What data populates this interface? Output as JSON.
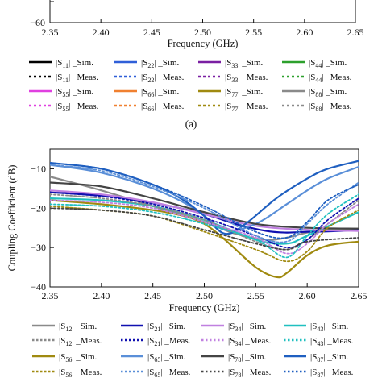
{
  "caption_a": "(a)",
  "chart_data": [
    {
      "type": "line",
      "panel": "a",
      "xlabel": "Frequency (GHz)",
      "ylabel": "",
      "xlim": [
        2.35,
        2.65
      ],
      "ylim": [
        -60,
        0
      ],
      "xticks": [
        "2.35",
        "2.40",
        "2.45",
        "2.50",
        "2.55",
        "2.60",
        "2.65"
      ],
      "yticks": [
        "−60"
      ],
      "legend_placement": "below",
      "legend": [
        {
          "label": "|S11| _Sim.",
          "prefix": "|S",
          "sub": "11",
          "suffix": "| _Sim.",
          "color": "#000000",
          "dash": "solid"
        },
        {
          "label": "|S22| _Sim.",
          "prefix": "|S",
          "sub": "22",
          "suffix": "| _Sim.",
          "color": "#2f5fd8",
          "dash": "solid"
        },
        {
          "label": "|S33| _Sim.",
          "prefix": "|S",
          "sub": "33",
          "suffix": "| _Sim.",
          "color": "#7a1fa2",
          "dash": "solid"
        },
        {
          "label": "|S44| _Sim.",
          "prefix": "|S",
          "sub": "44",
          "suffix": "| _Sim.",
          "color": "#2ca02c",
          "dash": "solid"
        },
        {
          "label": "|S11| _Meas.",
          "prefix": "|S",
          "sub": "11",
          "suffix": "| _Meas.",
          "color": "#000000",
          "dash": "dot"
        },
        {
          "label": "|S22| _Meas.",
          "prefix": "|S",
          "sub": "22",
          "suffix": "| _Meas.",
          "color": "#2f5fd8",
          "dash": "dot"
        },
        {
          "label": "|S33| _Meas.",
          "prefix": "|S",
          "sub": "33",
          "suffix": "| _Meas.",
          "color": "#7a1fa2",
          "dash": "dot"
        },
        {
          "label": "|S44| _Meas.",
          "prefix": "|S",
          "sub": "44",
          "suffix": "| _Meas.",
          "color": "#2ca02c",
          "dash": "dot"
        },
        {
          "label": "|S55| _Sim.",
          "prefix": "|S",
          "sub": "55",
          "suffix": "| _Sim.",
          "color": "#e040e0",
          "dash": "solid"
        },
        {
          "label": "|S66| _Sim.",
          "prefix": "|S",
          "sub": "66",
          "suffix": "| _Sim.",
          "color": "#f08030",
          "dash": "solid"
        },
        {
          "label": "|S77| _Sim.",
          "prefix": "|S",
          "sub": "77",
          "suffix": "| _Sim.",
          "color": "#a08a10",
          "dash": "solid"
        },
        {
          "label": "|S88| _Sim.",
          "prefix": "|S",
          "sub": "88",
          "suffix": "| _Sim.",
          "color": "#8a8a8a",
          "dash": "solid"
        },
        {
          "label": "|S55| _Meas.",
          "prefix": "|S",
          "sub": "55",
          "suffix": "| _Meas.",
          "color": "#e040e0",
          "dash": "dot"
        },
        {
          "label": "|S66| _Meas.",
          "prefix": "|S",
          "sub": "66",
          "suffix": "| _Meas.",
          "color": "#f08030",
          "dash": "dot"
        },
        {
          "label": "|S77| _Meas.",
          "prefix": "|S",
          "sub": "77",
          "suffix": "| _Meas.",
          "color": "#a08a10",
          "dash": "dot"
        },
        {
          "label": "|S88| _Meas.",
          "prefix": "|S",
          "sub": "88",
          "suffix": "| _Meas.",
          "color": "#8a8a8a",
          "dash": "dot"
        }
      ]
    },
    {
      "type": "line",
      "panel": "b",
      "xlabel": "Frequency (GHz)",
      "ylabel": "Coupling Coefficient (dB)",
      "xlim": [
        2.35,
        2.65
      ],
      "ylim": [
        -40,
        -5
      ],
      "xticks": [
        "2.35",
        "2.40",
        "2.45",
        "2.50",
        "2.55",
        "2.60",
        "2.65"
      ],
      "yticks": [
        "−10",
        "−20",
        "−30",
        "−40"
      ],
      "grid": false,
      "legend_placement": "below",
      "series": [
        {
          "name": "|S12| _Sim.",
          "prefix": "|S",
          "sub": "12",
          "suffix": "| _Sim.",
          "color": "#8a8a8a",
          "dash": "solid",
          "x": [
            2.35,
            2.4,
            2.45,
            2.5,
            2.53,
            2.56,
            2.58,
            2.6,
            2.62,
            2.65
          ],
          "y": [
            -12.0,
            -15.5,
            -19.5,
            -23.5,
            -26.5,
            -28.0,
            -27.5,
            -26.2,
            -25.5,
            -25.2
          ]
        },
        {
          "name": "|S21| _Sim.",
          "prefix": "|S",
          "sub": "21",
          "suffix": "| _Sim.",
          "color": "#1010b0",
          "dash": "solid",
          "x": [
            2.35,
            2.4,
            2.45,
            2.5,
            2.53,
            2.56,
            2.58,
            2.6,
            2.62,
            2.65
          ],
          "y": [
            -16.0,
            -16.8,
            -18.6,
            -21.5,
            -24.0,
            -25.8,
            -26.2,
            -26.0,
            -25.9,
            -25.6
          ]
        },
        {
          "name": "|S34| _Sim.",
          "prefix": "|S",
          "sub": "34",
          "suffix": "| _Sim.",
          "color": "#c080e0",
          "dash": "solid",
          "x": [
            2.35,
            2.4,
            2.45,
            2.5,
            2.55,
            2.6,
            2.65
          ],
          "y": [
            -15.5,
            -16.5,
            -18.5,
            -21.5,
            -24.5,
            -25.5,
            -25.8
          ]
        },
        {
          "name": "|S43| _Sim.",
          "prefix": "|S",
          "sub": "43",
          "suffix": "| _Sim.",
          "color": "#20c0c0",
          "dash": "solid",
          "x": [
            2.35,
            2.4,
            2.45,
            2.5,
            2.55,
            2.58,
            2.6,
            2.65
          ],
          "y": [
            -17.5,
            -18.0,
            -19.5,
            -23.0,
            -28.0,
            -29.0,
            -27.0,
            -21.0
          ]
        },
        {
          "name": "|S56| _Sim.",
          "prefix": "|S",
          "sub": "56",
          "suffix": "| _Sim.",
          "color": "#a08a10",
          "dash": "solid",
          "x": [
            2.35,
            2.4,
            2.45,
            2.48,
            2.5,
            2.52,
            2.55,
            2.57,
            2.58,
            2.6,
            2.62,
            2.65
          ],
          "y": [
            -18.0,
            -19.0,
            -20.5,
            -22.0,
            -24.0,
            -28.0,
            -35.0,
            -37.5,
            -36.5,
            -32.0,
            -29.5,
            -28.5
          ]
        },
        {
          "name": "|S65| _Sim.",
          "prefix": "|S",
          "sub": "65",
          "suffix": "| _Sim.",
          "color": "#5a8fd8",
          "dash": "solid",
          "x": [
            2.35,
            2.4,
            2.45,
            2.49,
            2.52,
            2.55,
            2.58,
            2.6,
            2.62,
            2.65
          ],
          "y": [
            -9.0,
            -11.0,
            -15.0,
            -20.0,
            -25.5,
            -24.0,
            -19.0,
            -15.5,
            -12.5,
            -9.5
          ]
        },
        {
          "name": "|S78| _Sim.",
          "prefix": "|S",
          "sub": "78",
          "suffix": "| _Sim.",
          "color": "#444444",
          "dash": "solid",
          "x": [
            2.35,
            2.4,
            2.45,
            2.5,
            2.55,
            2.6,
            2.65
          ],
          "y": [
            -13.5,
            -14.5,
            -17.5,
            -21.0,
            -24.0,
            -25.0,
            -25.2
          ]
        },
        {
          "name": "|S87| _Sim.",
          "prefix": "|S",
          "sub": "87",
          "suffix": "| _Sim.",
          "color": "#1f5fc0",
          "dash": "solid",
          "x": [
            2.35,
            2.4,
            2.45,
            2.48,
            2.5,
            2.52,
            2.54,
            2.57,
            2.6,
            2.62,
            2.65
          ],
          "y": [
            -8.5,
            -10.0,
            -14.0,
            -18.0,
            -22.0,
            -26.5,
            -24.0,
            -17.5,
            -12.5,
            -10.0,
            -8.0
          ]
        },
        {
          "name": "|S12| _Meas.",
          "prefix": "|S",
          "sub": "12",
          "suffix": "| _Meas.",
          "color": "#8a8a8a",
          "dash": "dot",
          "x": [
            2.35,
            2.4,
            2.45,
            2.5,
            2.55,
            2.58,
            2.6,
            2.62,
            2.65
          ],
          "y": [
            -16.5,
            -17.5,
            -19.5,
            -23.0,
            -28.5,
            -30.5,
            -28.0,
            -24.0,
            -18.0
          ]
        },
        {
          "name": "|S21| _Meas.",
          "prefix": "|S",
          "sub": "21",
          "suffix": "| _Meas.",
          "color": "#1010b0",
          "dash": "dot",
          "x": [
            2.35,
            2.4,
            2.45,
            2.5,
            2.55,
            2.58,
            2.6,
            2.62,
            2.65
          ],
          "y": [
            -16.0,
            -17.0,
            -19.0,
            -22.5,
            -27.0,
            -30.0,
            -28.0,
            -23.0,
            -17.5
          ]
        },
        {
          "name": "|S34| _Meas.",
          "prefix": "|S",
          "sub": "34",
          "suffix": "| _Meas.",
          "color": "#c080e0",
          "dash": "dot",
          "x": [
            2.35,
            2.4,
            2.45,
            2.5,
            2.55,
            2.58,
            2.6,
            2.62,
            2.65
          ],
          "y": [
            -18.0,
            -18.5,
            -20.0,
            -23.5,
            -27.5,
            -31.5,
            -29.0,
            -24.0,
            -19.0
          ]
        },
        {
          "name": "|S43| _Meas.",
          "prefix": "|S",
          "sub": "43",
          "suffix": "| _Meas.",
          "color": "#20c0c0",
          "dash": "dot",
          "x": [
            2.35,
            2.4,
            2.45,
            2.5,
            2.55,
            2.58,
            2.6,
            2.62,
            2.65
          ],
          "y": [
            -19.0,
            -19.5,
            -21.0,
            -24.0,
            -28.0,
            -32.5,
            -27.0,
            -21.5,
            -16.5
          ]
        },
        {
          "name": "|S56| _Meas.",
          "prefix": "|S",
          "sub": "56",
          "suffix": "| _Meas.",
          "color": "#a08a10",
          "dash": "dot",
          "x": [
            2.35,
            2.4,
            2.45,
            2.5,
            2.55,
            2.58,
            2.6,
            2.62,
            2.65
          ],
          "y": [
            -19.5,
            -20.5,
            -22.0,
            -26.0,
            -30.5,
            -33.5,
            -31.0,
            -25.0,
            -20.5
          ]
        },
        {
          "name": "|S65| _Meas.",
          "prefix": "|S",
          "sub": "65",
          "suffix": "| _Meas.",
          "color": "#5a8fd8",
          "dash": "dot",
          "x": [
            2.35,
            2.4,
            2.45,
            2.5,
            2.55,
            2.58,
            2.6,
            2.62,
            2.65
          ],
          "y": [
            -9.0,
            -10.5,
            -14.5,
            -20.0,
            -27.0,
            -28.5,
            -24.0,
            -19.0,
            -13.5
          ]
        },
        {
          "name": "|S78| _Meas.",
          "prefix": "|S",
          "sub": "78",
          "suffix": "| _Meas.",
          "color": "#444444",
          "dash": "dot",
          "x": [
            2.35,
            2.4,
            2.45,
            2.5,
            2.55,
            2.58,
            2.6,
            2.65
          ],
          "y": [
            -20.0,
            -20.5,
            -22.0,
            -25.5,
            -29.0,
            -30.5,
            -28.5,
            -27.5
          ]
        },
        {
          "name": "|S87| _Meas.",
          "prefix": "|S",
          "sub": "87",
          "suffix": "| _Meas.",
          "color": "#1f5fc0",
          "dash": "dot",
          "x": [
            2.35,
            2.4,
            2.45,
            2.5,
            2.55,
            2.58,
            2.6,
            2.62,
            2.65
          ],
          "y": [
            -8.5,
            -10.0,
            -14.0,
            -19.5,
            -26.0,
            -27.5,
            -23.5,
            -18.0,
            -14.0
          ]
        }
      ]
    }
  ]
}
